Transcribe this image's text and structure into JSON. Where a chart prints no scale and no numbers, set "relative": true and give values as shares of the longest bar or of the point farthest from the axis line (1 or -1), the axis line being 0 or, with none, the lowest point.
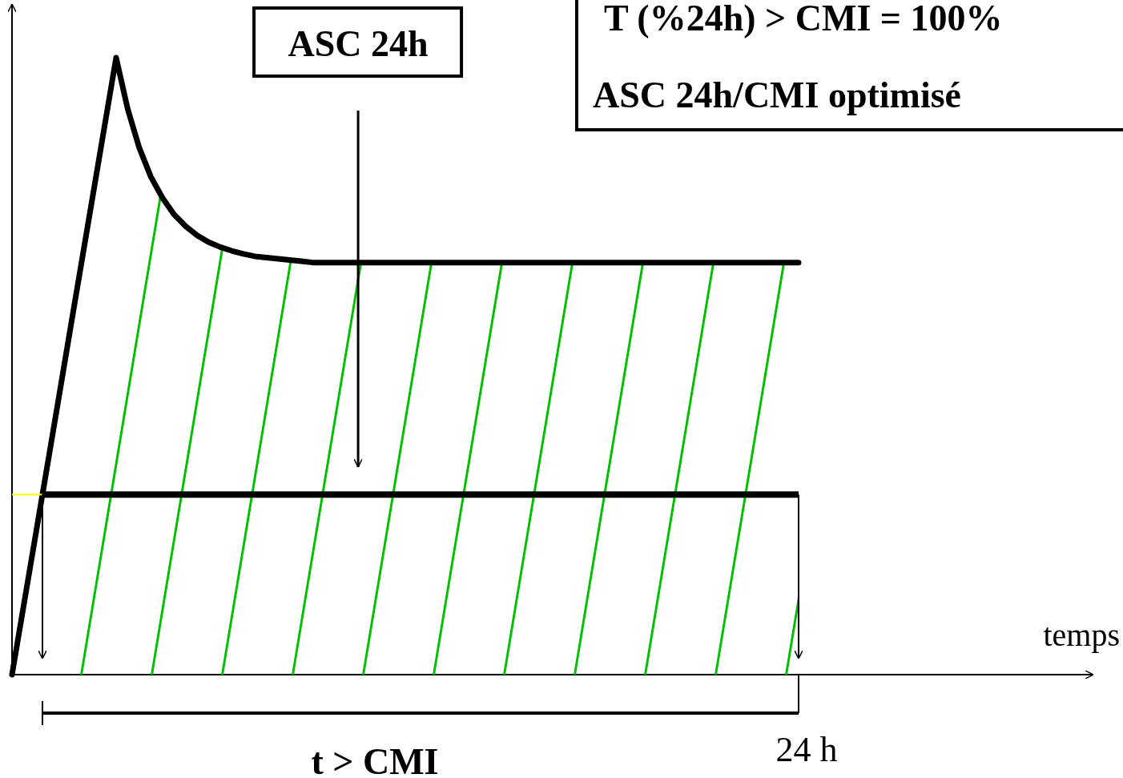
{
  "chart_data": {
    "type": "area",
    "relative": true,
    "categories": [
      null,
      null,
      null,
      null,
      null,
      null,
      null,
      null,
      null,
      null,
      null,
      null,
      null,
      null,
      null,
      null,
      null,
      null,
      null,
      null,
      null,
      null,
      null,
      null,
      null,
      null,
      null,
      null,
      null,
      null,
      null,
      null,
      null,
      null,
      null,
      null,
      null,
      null,
      null,
      null,
      null,
      null,
      null,
      null,
      null,
      null,
      null,
      null,
      null,
      null,
      null,
      null,
      null,
      null,
      null,
      null,
      null,
      null,
      null,
      null,
      null,
      null,
      null,
      null,
      null,
      null,
      null,
      null,
      null
    ],
    "series": [
      {
        "color": "#000000",
        "values": [
          0,
          0.111,
          0.222,
          0.333,
          0.444,
          0.556,
          0.667,
          0.778,
          0.889,
          1,
          0.917,
          0.854,
          0.807,
          0.773,
          0.746,
          0.727,
          0.712,
          0.701,
          0.693,
          0.687,
          0.682,
          0.678,
          0.676,
          0.674,
          0.672,
          0.67,
          0.668,
          0.668,
          0.668,
          0.668,
          0.668,
          0.668,
          0.668,
          0.668,
          0.668,
          0.668,
          0.668,
          0.668,
          0.668,
          0.668,
          0.668,
          0.668,
          0.668,
          0.668,
          0.668,
          0.668,
          0.668,
          0.668,
          0.668,
          0.668,
          0.668,
          0.668,
          0.668,
          0.668,
          0.668,
          0.668,
          0.668,
          0.668,
          0.668,
          0.668,
          0.668,
          0.668,
          0.668,
          0.668,
          0.668,
          0.668,
          0.668,
          0.668,
          0.668
        ]
      }
    ],
    "ref_lines": [
      {
        "axis": "y",
        "value": 0.292,
        "color": "#000000"
      }
    ],
    "annotations": [
      "ASC 24h",
      "T (%24h) > CMI = 100%",
      "ASC 24h/CMI optimisé",
      "t > CMI",
      "24 h",
      "temps"
    ]
  }
}
